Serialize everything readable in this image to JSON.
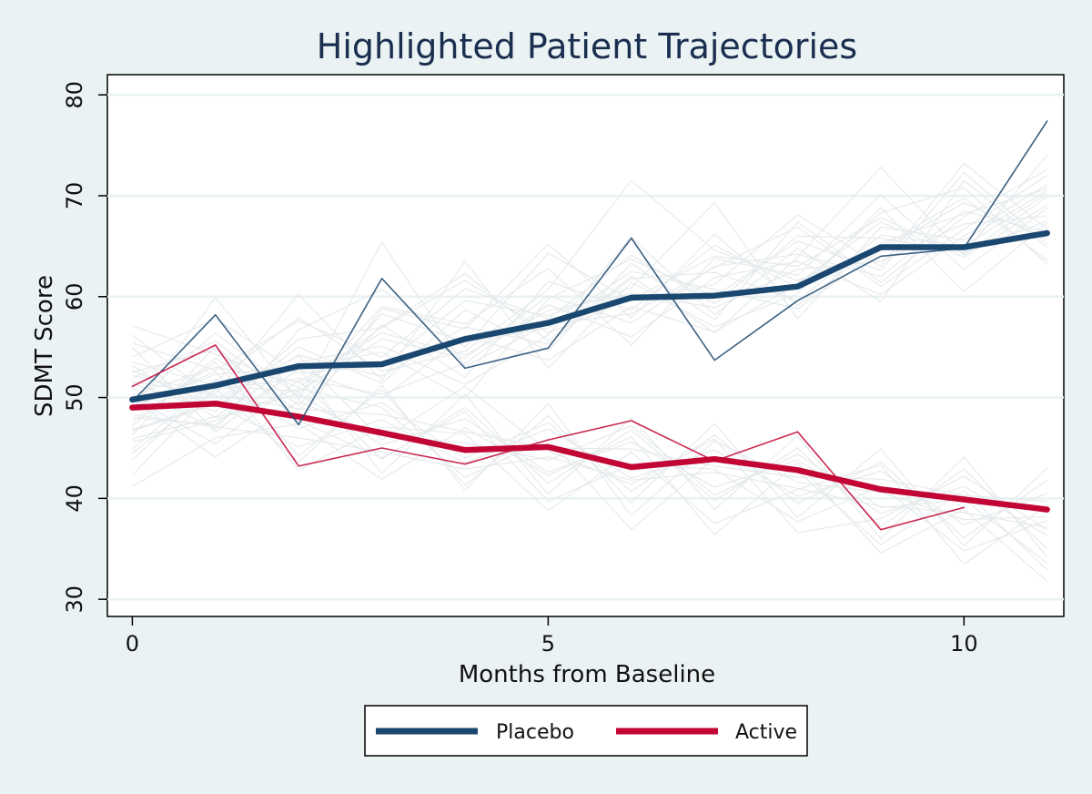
{
  "colors": {
    "background": "#eaf2f3",
    "plot_background": "#ffffff",
    "grid": "#eaf2f3",
    "placebo": "#1a476f",
    "active": "#c10534",
    "background_trajectories": "#e6eaec"
  },
  "chart_data": {
    "type": "line",
    "title": "Highlighted Patient Trajectories",
    "xlabel": "Months from Baseline",
    "ylabel": "SDMT Score",
    "xlim": [
      -0.3,
      11.2
    ],
    "ylim": [
      28.3,
      82
    ],
    "x_ticks": [
      0,
      5,
      10
    ],
    "x_tick_labels": [
      "0",
      "5",
      "10"
    ],
    "y_ticks": [
      30,
      40,
      50,
      60,
      70,
      80
    ],
    "y_tick_labels": [
      "30",
      "40",
      "50",
      "60",
      "70",
      "80"
    ],
    "grid": true,
    "legend_position": "bottom",
    "series": [
      {
        "name": "Placebo",
        "role": "mean",
        "color": "#1a476f",
        "x": [
          0,
          1,
          2,
          3,
          4,
          5,
          6,
          7,
          8,
          9,
          10,
          11
        ],
        "values": [
          49.8,
          51.2,
          53.1,
          53.3,
          55.8,
          57.4,
          59.9,
          60.1,
          61.0,
          64.9,
          64.9,
          66.3
        ]
      },
      {
        "name": "Active",
        "role": "mean",
        "color": "#c10534",
        "x": [
          0,
          1,
          2,
          3,
          4,
          5,
          6,
          7,
          8,
          9,
          10,
          11
        ],
        "values": [
          49.0,
          49.4,
          48.1,
          46.5,
          44.8,
          45.1,
          43.1,
          43.9,
          42.8,
          40.9,
          39.9,
          38.9
        ]
      },
      {
        "role": "highlighted-patient",
        "group": "Placebo",
        "color": "#1a476f",
        "x": [
          0,
          1,
          2,
          3,
          4,
          5,
          6,
          7,
          8,
          9,
          10,
          11
        ],
        "values": [
          49.6,
          58.2,
          47.3,
          61.8,
          52.9,
          54.9,
          65.8,
          53.7,
          59.6,
          64.0,
          64.8,
          77.4
        ]
      },
      {
        "role": "highlighted-patient",
        "group": "Active",
        "color": "#c10534",
        "x": [
          0,
          1,
          2,
          3,
          4,
          5,
          6,
          7,
          8,
          9,
          10
        ],
        "values": [
          51.1,
          55.2,
          43.2,
          45.0,
          43.4,
          45.8,
          47.7,
          43.7,
          46.6,
          36.9,
          39.1
        ]
      }
    ],
    "background_trajectories": [
      {
        "x": [
          0,
          1,
          2,
          3,
          4,
          5,
          6,
          7,
          8,
          9,
          10,
          11
        ],
        "values": [
          50.2,
          53.0,
          51.5,
          56.4,
          54.2,
          58.6,
          60.3,
          58.9,
          62.7,
          63.5,
          67.2,
          68.0
        ]
      },
      {
        "x": [
          0,
          1,
          2,
          3,
          4,
          5,
          6,
          7,
          8,
          9,
          10,
          11
        ],
        "values": [
          46.8,
          49.5,
          54.2,
          52.1,
          57.0,
          55.3,
          61.8,
          62.4,
          59.6,
          66.1,
          65.0,
          70.2
        ]
      },
      {
        "x": [
          0,
          1,
          2,
          3,
          4,
          5,
          6,
          7,
          8,
          9,
          10,
          11
        ],
        "values": [
          53.5,
          51.2,
          50.6,
          55.8,
          53.9,
          60.1,
          57.4,
          63.0,
          64.2,
          62.0,
          68.5,
          66.4
        ]
      },
      {
        "x": [
          0,
          1,
          2,
          3,
          4,
          5,
          6,
          7,
          8,
          9,
          10,
          11
        ],
        "values": [
          48.0,
          47.3,
          52.8,
          49.9,
          56.1,
          53.7,
          59.0,
          56.5,
          61.3,
          67.4,
          63.9,
          69.1
        ]
      },
      {
        "x": [
          0,
          1,
          2,
          3,
          4,
          5,
          6,
          7,
          8,
          9,
          10,
          11
        ],
        "values": [
          51.9,
          55.6,
          49.2,
          58.3,
          55.5,
          56.9,
          62.5,
          60.7,
          58.8,
          64.6,
          69.3,
          65.7
        ]
      },
      {
        "x": [
          0,
          1,
          2,
          3,
          4,
          5,
          6,
          7,
          8,
          9,
          10,
          11
        ],
        "values": [
          44.5,
          50.8,
          51.9,
          50.3,
          53.4,
          59.2,
          56.0,
          61.9,
          63.5,
          60.2,
          66.0,
          71.1
        ]
      },
      {
        "x": [
          0,
          1,
          2,
          3,
          4,
          5,
          6,
          7,
          8,
          9,
          10,
          11
        ],
        "values": [
          55.4,
          52.7,
          57.6,
          54.0,
          60.8,
          57.8,
          64.1,
          59.3,
          66.0,
          65.8,
          64.4,
          67.5
        ]
      },
      {
        "x": [
          0,
          1,
          2,
          3,
          4,
          5,
          6,
          7,
          8,
          9,
          10,
          11
        ],
        "values": [
          47.2,
          53.9,
          48.7,
          57.2,
          52.0,
          61.5,
          58.7,
          65.1,
          60.9,
          68.3,
          70.8,
          63.2
        ]
      },
      {
        "x": [
          0,
          1,
          2,
          3,
          4,
          5,
          6,
          7,
          8,
          9,
          10,
          11
        ],
        "values": [
          52.7,
          49.0,
          55.0,
          51.4,
          58.7,
          54.6,
          63.3,
          57.7,
          67.4,
          61.4,
          67.9,
          72.6
        ]
      },
      {
        "x": [
          0,
          1,
          2,
          3,
          4,
          5,
          6,
          7,
          8,
          9,
          10,
          11
        ],
        "values": [
          49.4,
          56.4,
          50.1,
          59.0,
          57.3,
          62.8,
          55.2,
          63.8,
          62.1,
          70.1,
          62.7,
          68.8
        ]
      },
      {
        "x": [
          0,
          1,
          2,
          3,
          4,
          5,
          6,
          7,
          8,
          9,
          10,
          11
        ],
        "values": [
          45.9,
          48.1,
          53.5,
          55.1,
          51.3,
          56.2,
          65.9,
          58.2,
          64.8,
          59.5,
          71.5,
          64.9
        ]
      },
      {
        "x": [
          0,
          1,
          2,
          3,
          4,
          5,
          6,
          7,
          8,
          9,
          10,
          11
        ],
        "values": [
          54.0,
          57.8,
          52.4,
          53.1,
          59.6,
          58.1,
          60.9,
          69.3,
          57.8,
          66.9,
          65.6,
          70.5
        ]
      },
      {
        "x": [
          0,
          1,
          2,
          3,
          4,
          5,
          6,
          7,
          8,
          9,
          10,
          11
        ],
        "values": [
          50.9,
          46.9,
          56.7,
          60.7,
          55.0,
          64.3,
          59.6,
          61.2,
          68.1,
          63.0,
          73.2,
          66.7
        ]
      },
      {
        "x": [
          0,
          1,
          2,
          3,
          4,
          5,
          6,
          7,
          8,
          9,
          10,
          11
        ],
        "values": [
          57.1,
          54.3,
          51.0,
          57.0,
          62.3,
          55.6,
          62.0,
          56.4,
          63.9,
          72.8,
          64.1,
          69.9
        ]
      },
      {
        "x": [
          0,
          1,
          2,
          3,
          4,
          5,
          6,
          7,
          8,
          9,
          10,
          11
        ],
        "values": [
          43.8,
          51.6,
          57.9,
          52.6,
          54.6,
          60.7,
          71.5,
          64.6,
          61.6,
          64.9,
          69.8,
          63.6
        ]
      },
      {
        "x": [
          0,
          1,
          2,
          3,
          4,
          5,
          6,
          7,
          8,
          9,
          10,
          11
        ],
        "values": [
          48.7,
          59.9,
          49.8,
          65.4,
          53.1,
          57.3,
          58.3,
          62.9,
          66.9,
          61.0,
          66.7,
          72.0
        ]
      },
      {
        "x": [
          0,
          1,
          2,
          3,
          4,
          5,
          6,
          7,
          8,
          9,
          10,
          11
        ],
        "values": [
          52.2,
          50.4,
          60.2,
          51.7,
          63.5,
          52.9,
          61.4,
          57.0,
          60.3,
          68.8,
          60.5,
          67.3
        ]
      },
      {
        "x": [
          0,
          1,
          2,
          3,
          4,
          5,
          6,
          7,
          8,
          9,
          10,
          11
        ],
        "values": [
          46.3,
          55.1,
          47.6,
          58.8,
          56.8,
          65.2,
          57.9,
          66.2,
          59.1,
          65.3,
          68.2,
          70.7
        ]
      },
      {
        "x": [
          0,
          1,
          2,
          3,
          4,
          5,
          6,
          7,
          8,
          9,
          10,
          11
        ],
        "values": [
          49.1,
          52.3,
          53.0,
          54.5,
          49.9,
          59.8,
          63.7,
          60.0,
          65.5,
          62.6,
          72.3,
          65.2
        ]
      },
      {
        "x": [
          0,
          1,
          2,
          3,
          4,
          5,
          6,
          7,
          8,
          9,
          10,
          11
        ],
        "values": [
          51.4,
          48.6,
          55.8,
          56.9,
          61.6,
          56.4,
          59.7,
          64.0,
          63.0,
          67.8,
          64.3,
          74.0
        ]
      },
      {
        "x": [
          0,
          1,
          2,
          3,
          4,
          5,
          6,
          7,
          8,
          9,
          10,
          11
        ],
        "values": [
          48.3,
          47.1,
          46.0,
          44.6,
          42.9,
          44.1,
          41.8,
          42.6,
          41.0,
          39.2,
          38.6,
          37.1
        ]
      },
      {
        "x": [
          0,
          1,
          2,
          3,
          4,
          5,
          6,
          7,
          8,
          9,
          10,
          11
        ],
        "values": [
          51.6,
          50.2,
          48.9,
          48.3,
          46.6,
          45.0,
          44.9,
          43.2,
          42.1,
          41.9,
          40.3,
          39.7
        ]
      },
      {
        "x": [
          0,
          1,
          2,
          3,
          4,
          5,
          6,
          7,
          8,
          9,
          10,
          11
        ],
        "values": [
          46.7,
          49.3,
          45.1,
          47.8,
          43.5,
          46.9,
          42.0,
          44.8,
          40.2,
          42.7,
          37.4,
          40.5
        ]
      },
      {
        "x": [
          0,
          1,
          2,
          3,
          4,
          5,
          6,
          7,
          8,
          9,
          10,
          11
        ],
        "values": [
          53.2,
          48.0,
          50.4,
          45.3,
          47.9,
          42.6,
          45.6,
          41.1,
          43.8,
          38.5,
          41.2,
          36.3
        ]
      },
      {
        "x": [
          0,
          1,
          2,
          3,
          4,
          5,
          6,
          7,
          8,
          9,
          10,
          11
        ],
        "values": [
          44.9,
          51.8,
          46.9,
          49.5,
          44.0,
          47.5,
          40.7,
          46.3,
          39.5,
          43.6,
          36.1,
          41.8
        ]
      },
      {
        "x": [
          0,
          1,
          2,
          3,
          4,
          5,
          6,
          7,
          8,
          9,
          10,
          11
        ],
        "values": [
          50.0,
          45.4,
          51.7,
          43.9,
          49.0,
          41.5,
          46.8,
          39.8,
          45.0,
          37.2,
          42.9,
          35.0
        ]
      },
      {
        "x": [
          0,
          1,
          2,
          3,
          4,
          5,
          6,
          7,
          8,
          9,
          10,
          11
        ],
        "values": [
          47.6,
          53.5,
          44.2,
          50.8,
          41.3,
          48.2,
          39.6,
          47.4,
          38.1,
          44.9,
          35.3,
          43.0
        ]
      },
      {
        "x": [
          0,
          1,
          2,
          3,
          4,
          5,
          6,
          7,
          8,
          9,
          10,
          11
        ],
        "values": [
          55.0,
          46.6,
          52.9,
          42.5,
          50.3,
          40.4,
          48.0,
          38.9,
          46.2,
          36.0,
          44.1,
          34.2
        ]
      },
      {
        "x": [
          0,
          1,
          2,
          3,
          4,
          5,
          6,
          7,
          8,
          9,
          10,
          11
        ],
        "values": [
          42.3,
          50.9,
          43.6,
          51.2,
          40.8,
          49.4,
          38.3,
          45.7,
          41.6,
          40.6,
          37.9,
          38.2
        ]
      },
      {
        "x": [
          0,
          1,
          2,
          3,
          4,
          5,
          6,
          7,
          8,
          9,
          10,
          11
        ],
        "values": [
          49.8,
          44.1,
          49.6,
          46.2,
          45.5,
          43.8,
          47.2,
          40.3,
          44.4,
          39.1,
          39.9,
          33.6
        ]
      },
      {
        "x": [
          0,
          1,
          2,
          3,
          4,
          5,
          6,
          7,
          8,
          9,
          10,
          11
        ],
        "values": [
          52.5,
          54.8,
          47.7,
          44.0,
          48.6,
          39.7,
          43.4,
          42.9,
          37.7,
          41.2,
          34.8,
          37.8
        ]
      },
      {
        "x": [
          0,
          1,
          2,
          3,
          4,
          5,
          6,
          7,
          8,
          9,
          10,
          11
        ],
        "values": [
          45.6,
          47.7,
          50.9,
          49.0,
          42.1,
          45.9,
          36.9,
          44.0,
          42.7,
          35.4,
          40.8,
          32.9
        ]
      },
      {
        "x": [
          0,
          1,
          2,
          3,
          4,
          5,
          6,
          7,
          8,
          9,
          10,
          11
        ],
        "values": [
          48.9,
          52.6,
          42.8,
          47.1,
          46.4,
          38.8,
          44.6,
          37.5,
          40.9,
          43.3,
          33.5,
          39.3
        ]
      },
      {
        "x": [
          0,
          1,
          2,
          3,
          4,
          5,
          6,
          7,
          8,
          9,
          10,
          11
        ],
        "values": [
          56.2,
          49.9,
          54.1,
          45.8,
          51.1,
          44.7,
          41.4,
          45.9,
          36.6,
          38.0,
          42.2,
          36.9
        ]
      },
      {
        "x": [
          0,
          1,
          2,
          3,
          4,
          5,
          6,
          7,
          8,
          9,
          10,
          11
        ],
        "values": [
          41.2,
          46.0,
          47.4,
          41.9,
          47.0,
          42.3,
          46.1,
          36.4,
          43.5,
          34.6,
          38.9,
          31.8
        ]
      }
    ]
  }
}
